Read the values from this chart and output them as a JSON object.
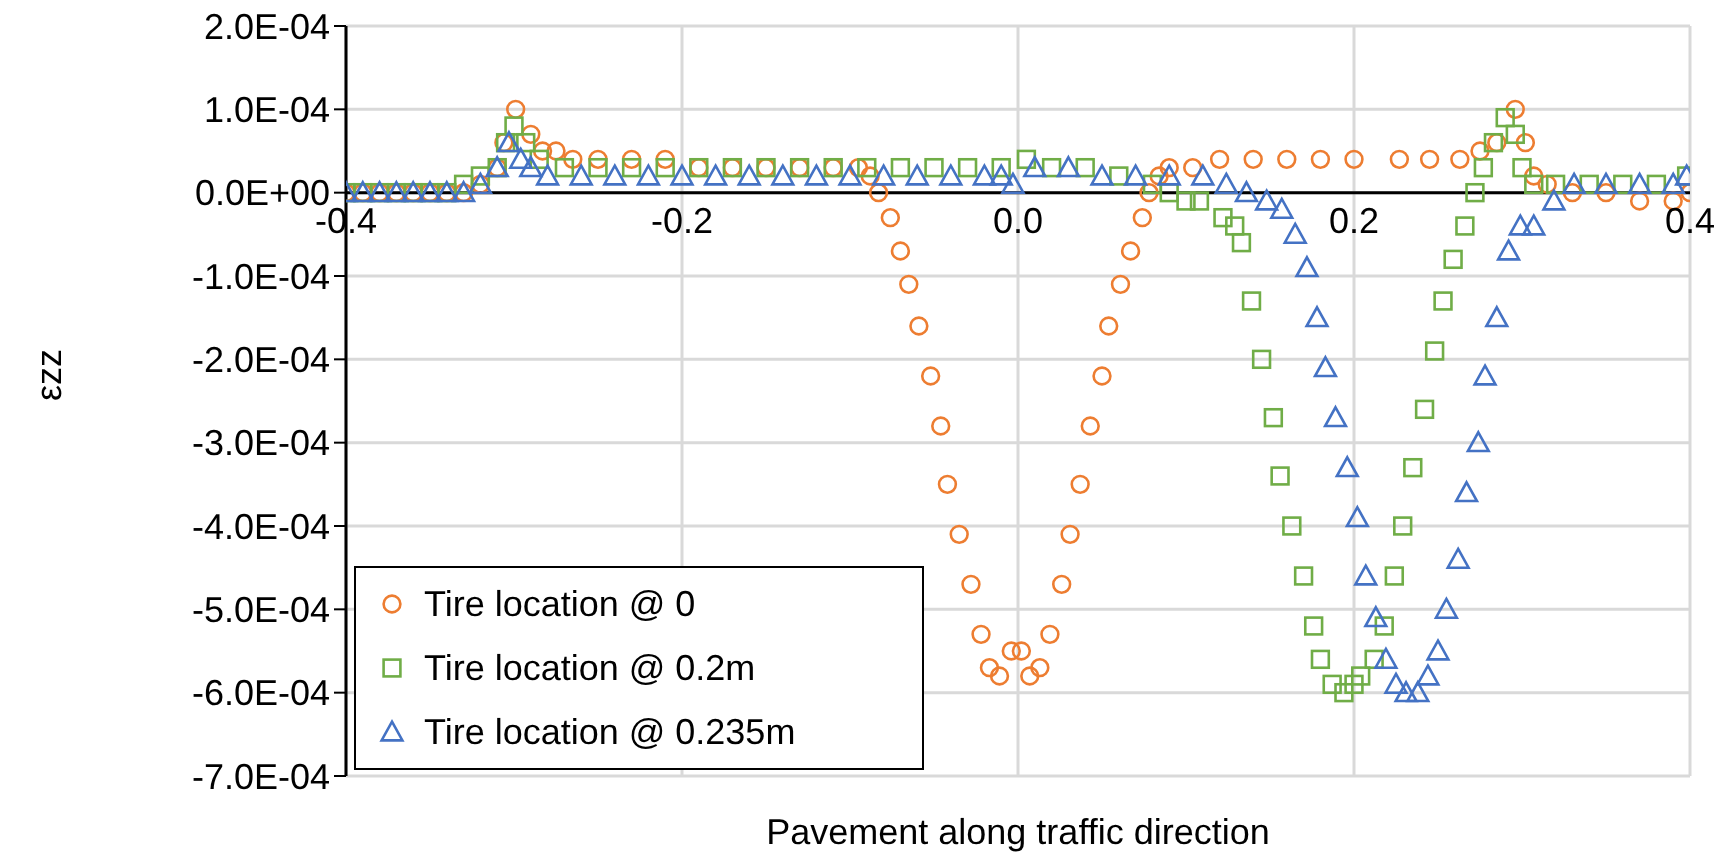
{
  "chart_data": {
    "type": "scatter",
    "xlabel": "Pavement along traffic direction",
    "ylabel": "εzz",
    "xlim": [
      -0.4,
      0.4
    ],
    "xticks": [
      {
        "value": -0.4,
        "label": "-0.4"
      },
      {
        "value": -0.2,
        "label": "-0.2"
      },
      {
        "value": 0,
        "label": "0.0"
      },
      {
        "value": 0.2,
        "label": "0.2"
      },
      {
        "value": 0.4,
        "label": "0.4"
      }
    ],
    "ylim": [
      -0.0007,
      0.0002
    ],
    "yticks": [
      {
        "value": -0.0007,
        "label": "-7.0E-04"
      },
      {
        "value": -0.0006,
        "label": "-6.0E-04"
      },
      {
        "value": -0.0005,
        "label": "-5.0E-04"
      },
      {
        "value": -0.0004,
        "label": "-4.0E-04"
      },
      {
        "value": -0.0003,
        "label": "-3.0E-04"
      },
      {
        "value": -0.0002,
        "label": "-2.0E-04"
      },
      {
        "value": -0.0001,
        "label": "-1.0E-04"
      },
      {
        "value": 0,
        "label": "0.0E+00"
      },
      {
        "value": 0.0001,
        "label": "1.0E-04"
      },
      {
        "value": 0.0002,
        "label": "2.0E-04"
      }
    ],
    "grid": true,
    "legend": "bottom left",
    "series": [
      {
        "name": "Tire location @ 0",
        "color": "#ed7d31",
        "marker": "circle",
        "x": [
          -0.4,
          -0.39,
          -0.38,
          -0.37,
          -0.36,
          -0.35,
          -0.34,
          -0.33,
          -0.32,
          -0.31,
          -0.306,
          -0.299,
          -0.29,
          -0.283,
          -0.275,
          -0.265,
          -0.25,
          -0.23,
          -0.21,
          -0.19,
          -0.17,
          -0.15,
          -0.13,
          -0.11,
          -0.095,
          -0.088,
          -0.083,
          -0.076,
          -0.07,
          -0.065,
          -0.059,
          -0.052,
          -0.046,
          -0.042,
          -0.035,
          -0.028,
          -0.022,
          -0.017,
          -0.011,
          -0.004,
          0.002,
          0.007,
          0.013,
          0.019,
          0.026,
          0.031,
          0.037,
          0.043,
          0.05,
          0.054,
          0.061,
          0.067,
          0.074,
          0.078,
          0.084,
          0.09,
          0.104,
          0.12,
          0.14,
          0.16,
          0.18,
          0.2,
          0.227,
          0.245,
          0.263,
          0.275,
          0.285,
          0.296,
          0.302,
          0.307,
          0.315,
          0.33,
          0.35,
          0.37,
          0.39,
          0.4
        ],
        "values": [
          0,
          0,
          0,
          0,
          0,
          0,
          0,
          0,
          1e-05,
          3e-05,
          6e-05,
          0.0001,
          7e-05,
          5e-05,
          5e-05,
          4e-05,
          4e-05,
          4e-05,
          4e-05,
          3e-05,
          3e-05,
          3e-05,
          3e-05,
          3e-05,
          3e-05,
          2e-05,
          0,
          -3e-05,
          -7e-05,
          -0.00011,
          -0.00016,
          -0.00022,
          -0.00028,
          -0.00035,
          -0.00041,
          -0.00047,
          -0.00053,
          -0.00057,
          -0.00058,
          -0.00055,
          -0.00055,
          -0.00058,
          -0.00057,
          -0.00053,
          -0.00047,
          -0.00041,
          -0.00035,
          -0.00028,
          -0.00022,
          -0.00016,
          -0.00011,
          -7e-05,
          -3e-05,
          0,
          2e-05,
          3e-05,
          3e-05,
          4e-05,
          4e-05,
          4e-05,
          4e-05,
          4e-05,
          4e-05,
          4e-05,
          4e-05,
          5e-05,
          6e-05,
          0.0001,
          6e-05,
          2e-05,
          1e-05,
          0,
          0,
          -1e-05,
          -1e-05,
          0
        ]
      },
      {
        "name": "Tire location @ 0.2m",
        "color": "#70ad47",
        "marker": "square",
        "x": [
          -0.4,
          -0.39,
          -0.38,
          -0.37,
          -0.36,
          -0.35,
          -0.34,
          -0.33,
          -0.32,
          -0.31,
          -0.305,
          -0.3,
          -0.293,
          -0.285,
          -0.27,
          -0.25,
          -0.23,
          -0.21,
          -0.19,
          -0.17,
          -0.15,
          -0.13,
          -0.11,
          -0.09,
          -0.07,
          -0.05,
          -0.03,
          -0.01,
          0.005,
          0.02,
          0.04,
          0.06,
          0.08,
          0.09,
          0.1,
          0.108,
          0.122,
          0.129,
          0.133,
          0.139,
          0.145,
          0.152,
          0.156,
          0.163,
          0.17,
          0.176,
          0.18,
          0.187,
          0.194,
          0.2,
          0.204,
          0.212,
          0.218,
          0.224,
          0.229,
          0.235,
          0.242,
          0.248,
          0.253,
          0.259,
          0.266,
          0.272,
          0.277,
          0.283,
          0.29,
          0.296,
          0.3,
          0.307,
          0.32,
          0.34,
          0.36,
          0.38,
          0.398
        ],
        "values": [
          0,
          0,
          0,
          0,
          0,
          0,
          0,
          1e-05,
          2e-05,
          3e-05,
          6e-05,
          8e-05,
          6e-05,
          4e-05,
          3e-05,
          3e-05,
          3e-05,
          3e-05,
          3e-05,
          3e-05,
          3e-05,
          3e-05,
          3e-05,
          3e-05,
          3e-05,
          3e-05,
          3e-05,
          3e-05,
          4e-05,
          3e-05,
          3e-05,
          2e-05,
          1e-05,
          0,
          -1e-05,
          -1e-05,
          -3e-05,
          -4e-05,
          -6e-05,
          -0.00013,
          -0.0002,
          -0.00027,
          -0.00034,
          -0.0004,
          -0.00046,
          -0.00052,
          -0.00056,
          -0.00059,
          -0.0006,
          -0.00059,
          -0.00058,
          -0.00056,
          -0.00052,
          -0.00046,
          -0.0004,
          -0.00033,
          -0.00026,
          -0.00019,
          -0.00013,
          -8e-05,
          -4e-05,
          0,
          3e-05,
          6e-05,
          9e-05,
          7e-05,
          3e-05,
          1e-05,
          1e-05,
          1e-05,
          1e-05,
          1e-05,
          2e-05
        ]
      },
      {
        "name": "Tire location @ 0.235m",
        "color": "#4472c4",
        "marker": "triangle",
        "x": [
          -0.4,
          -0.39,
          -0.38,
          -0.37,
          -0.36,
          -0.35,
          -0.34,
          -0.33,
          -0.32,
          -0.31,
          -0.303,
          -0.296,
          -0.29,
          -0.28,
          -0.26,
          -0.24,
          -0.22,
          -0.2,
          -0.18,
          -0.16,
          -0.14,
          -0.12,
          -0.1,
          -0.08,
          -0.06,
          -0.04,
          -0.02,
          -0.01,
          -0.003,
          0.01,
          0.03,
          0.05,
          0.07,
          0.09,
          0.11,
          0.124,
          0.136,
          0.148,
          0.157,
          0.165,
          0.172,
          0.178,
          0.183,
          0.189,
          0.196,
          0.202,
          0.207,
          0.213,
          0.219,
          0.225,
          0.231,
          0.238,
          0.244,
          0.25,
          0.255,
          0.262,
          0.267,
          0.274,
          0.278,
          0.285,
          0.292,
          0.299,
          0.307,
          0.319,
          0.331,
          0.35,
          0.37,
          0.39,
          0.398
        ],
        "values": [
          0,
          0,
          0,
          0,
          0,
          0,
          0,
          0,
          1e-05,
          3e-05,
          6e-05,
          4e-05,
          3e-05,
          2e-05,
          2e-05,
          2e-05,
          2e-05,
          2e-05,
          2e-05,
          2e-05,
          2e-05,
          2e-05,
          2e-05,
          2e-05,
          2e-05,
          2e-05,
          2e-05,
          2e-05,
          1e-05,
          3e-05,
          3e-05,
          2e-05,
          2e-05,
          2e-05,
          2e-05,
          1e-05,
          0,
          -1e-05,
          -2e-05,
          -5e-05,
          -9e-05,
          -0.00015,
          -0.00021,
          -0.00027,
          -0.00033,
          -0.00039,
          -0.00046,
          -0.00051,
          -0.00056,
          -0.00059,
          -0.0006,
          -0.0006,
          -0.00058,
          -0.00055,
          -0.0005,
          -0.00044,
          -0.00036,
          -0.0003,
          -0.00022,
          -0.00015,
          -7e-05,
          -4e-05,
          -4e-05,
          -1e-05,
          1e-05,
          1e-05,
          1e-05,
          1e-05,
          2e-05
        ]
      }
    ]
  }
}
